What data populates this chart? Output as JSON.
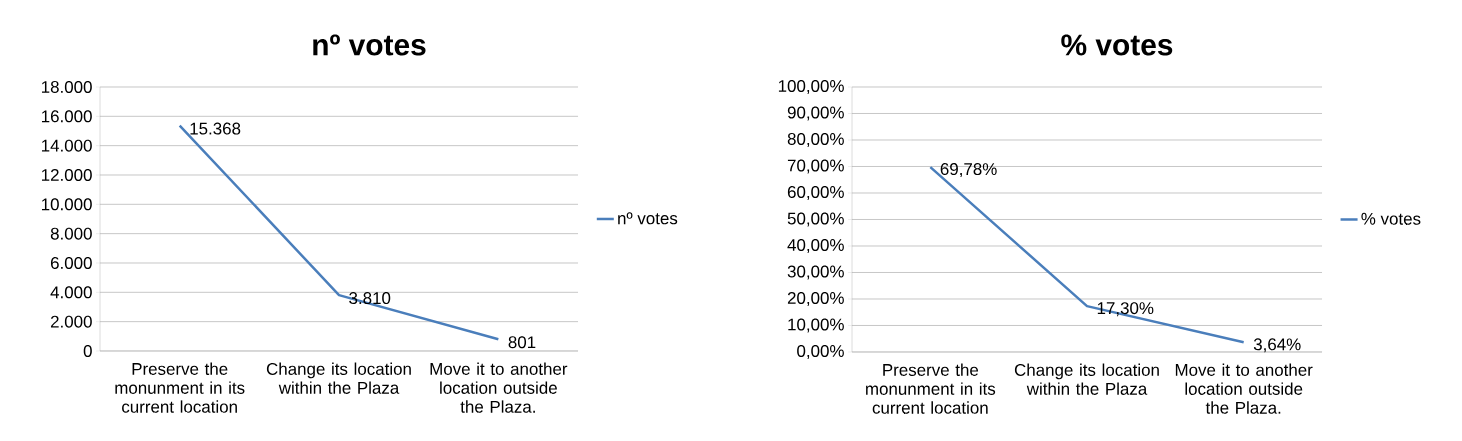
{
  "chart_data": [
    {
      "type": "line",
      "title": "nº votes",
      "categories": [
        "Preserve the monunment in its current location",
        "Change its location within the Plaza",
        "Move it to another location outside the Plaza."
      ],
      "series": [
        {
          "name": "nº votes",
          "color": "#4a7ebb",
          "values": [
            15368,
            3810,
            801
          ],
          "value_labels": [
            "15.368",
            "3.810",
            "801"
          ]
        }
      ],
      "ylim": [
        0,
        18000
      ],
      "yticks": [
        0,
        {
          "value": 2000,
          "label": "2.000"
        },
        {
          "value": 4000,
          "label": "4.000"
        },
        {
          "value": 6000,
          "label": "6.000"
        },
        {
          "value": 8000,
          "label": "8.000"
        },
        {
          "value": 10000,
          "label": "10.000"
        },
        {
          "value": 12000,
          "label": "12.000"
        },
        {
          "value": 14000,
          "label": "14.000"
        },
        {
          "value": 16000,
          "label": "16.000"
        },
        {
          "value": 18000,
          "label": "18.000"
        }
      ],
      "grid": "y",
      "legend": "right"
    },
    {
      "type": "line",
      "title": "% votes",
      "categories": [
        "Preserve the monunment in its current location",
        "Change its location within the Plaza",
        "Move it to another location outside the Plaza."
      ],
      "series": [
        {
          "name": "% votes",
          "color": "#4a7ebb",
          "values": [
            69.78,
            17.3,
            3.64
          ],
          "value_labels": [
            "69,78%",
            "17,30%",
            "3,64%"
          ]
        }
      ],
      "ylim": [
        0,
        100
      ],
      "yticks": [
        {
          "value": 0,
          "label": "0,00%"
        },
        {
          "value": 10,
          "label": "10,00%"
        },
        {
          "value": 20,
          "label": "20,00%"
        },
        {
          "value": 30,
          "label": "30,00%"
        },
        {
          "value": 40,
          "label": "40,00%"
        },
        {
          "value": 50,
          "label": "50,00%"
        },
        {
          "value": 60,
          "label": "60,00%"
        },
        {
          "value": 70,
          "label": "70,00%"
        },
        {
          "value": 80,
          "label": "80,00%"
        },
        {
          "value": 90,
          "label": "90,00%"
        },
        {
          "value": 100,
          "label": "100,00%"
        }
      ],
      "grid": "y",
      "legend": "right"
    }
  ]
}
